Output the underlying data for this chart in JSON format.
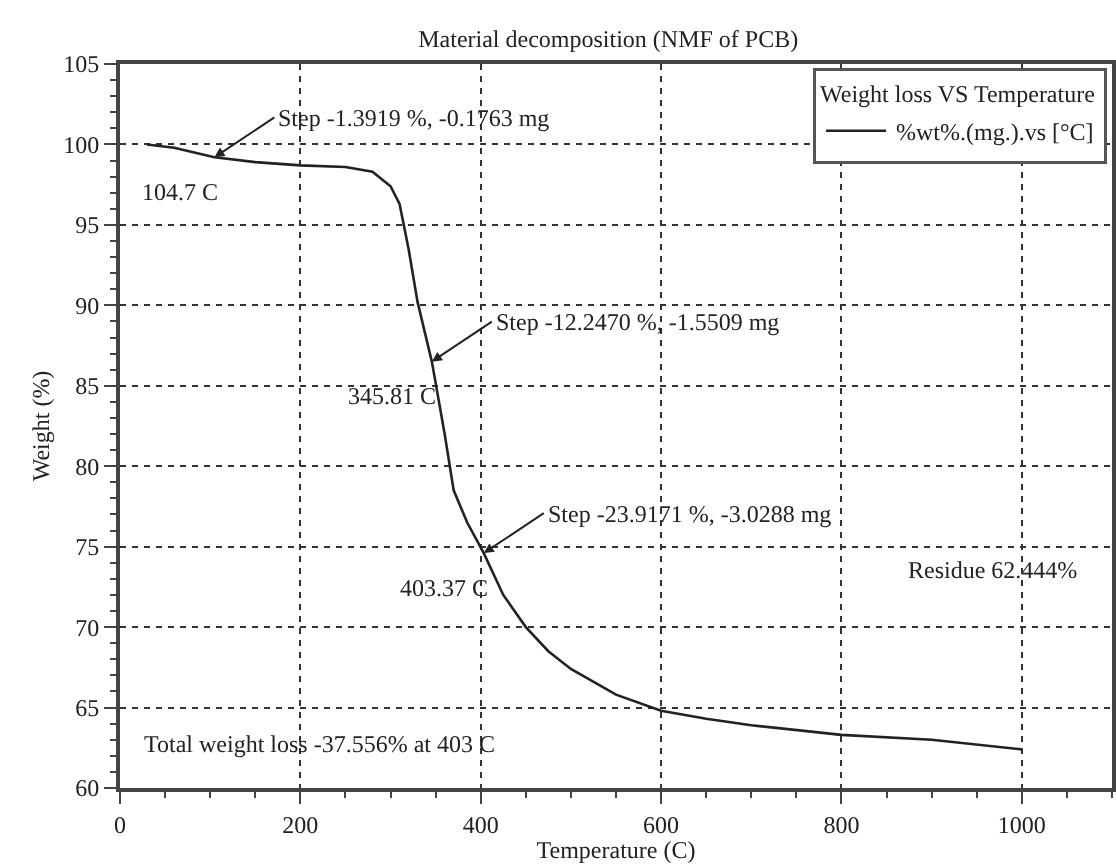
{
  "chart_data": {
    "type": "line",
    "title": "Material decomposition (NMF of PCB)",
    "xlabel": "Temperature (C)",
    "ylabel": "Weight (%)",
    "legend_title": "Weight loss VS Temperature",
    "series": [
      {
        "name": "%wt%.(mg.).vs [°C]",
        "color": "#222222",
        "x": [
          30,
          60,
          104.7,
          150,
          200,
          250,
          280,
          300,
          310,
          320,
          330,
          345.81,
          360,
          370,
          385,
          403.37,
          425,
          450,
          475,
          500,
          550,
          600,
          650,
          700,
          800,
          900,
          1000
        ],
        "values": [
          100,
          99.8,
          99.2,
          98.9,
          98.7,
          98.6,
          98.3,
          97.4,
          96.3,
          93.5,
          90.2,
          86.5,
          82,
          78.5,
          76.5,
          74.6,
          72,
          70,
          68.5,
          67.4,
          65.8,
          64.8,
          64.3,
          63.9,
          63.3,
          63,
          62.4
        ]
      }
    ],
    "annotations": [
      {
        "text": "Step -1.3919 %, -0.1763 mg",
        "x": 104.7,
        "y": 99.2
      },
      {
        "text": "104.7 C",
        "x": 104.7,
        "y": 99.2
      },
      {
        "text": "Step -12.2470 %, -1.5509 mg",
        "x": 345.81,
        "y": 86.5
      },
      {
        "text": "345.81 C",
        "x": 345.81,
        "y": 86.5
      },
      {
        "text": "Step -23.9171 %, -3.0288 mg",
        "x": 403.37,
        "y": 74.6
      },
      {
        "text": "403.37 C",
        "x": 403.37,
        "y": 74.6
      },
      "Residue 62.444%",
      "Total weight loss -37.556% at 403 C"
    ],
    "xlim": [
      0,
      1100
    ],
    "xticks": [
      0,
      200,
      400,
      600,
      800,
      1000
    ],
    "ylim": [
      60,
      105
    ],
    "yticks": [
      60,
      65,
      70,
      75,
      80,
      85,
      90,
      95,
      100,
      105
    ],
    "grid": true,
    "legend": "top right",
    "marker": "none",
    "line_style": "solid"
  }
}
